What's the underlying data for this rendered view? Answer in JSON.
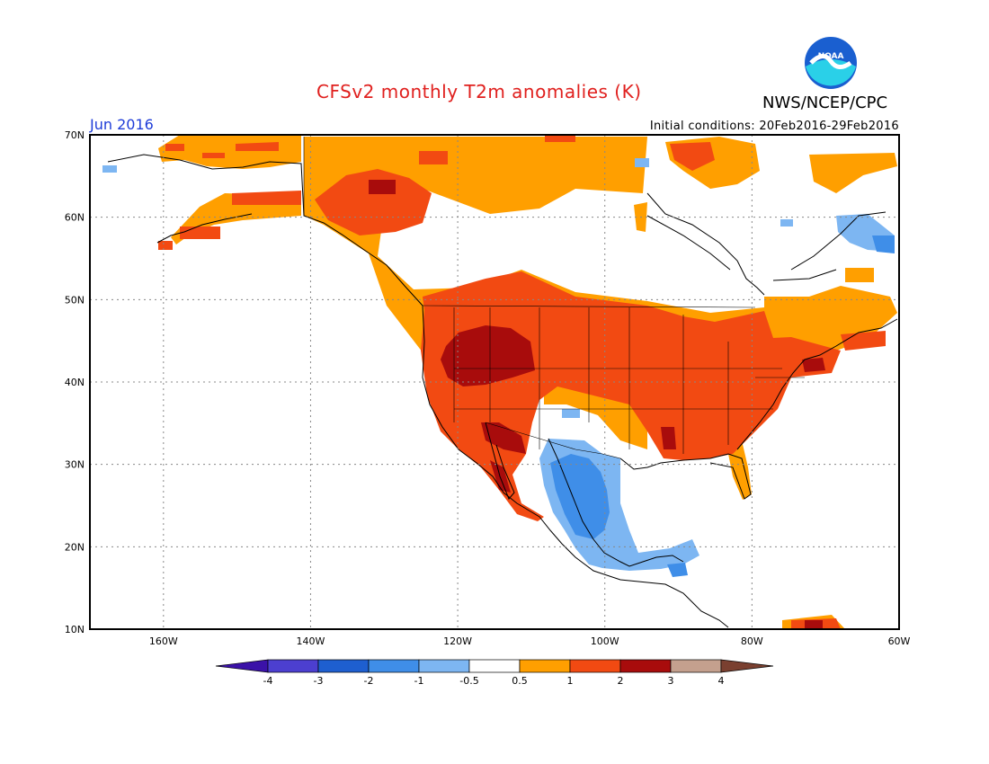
{
  "title": "CFSv2 monthly T2m anomalies (K)",
  "agency": "NWS/NCEP/CPC",
  "logo_text": "NOAA",
  "valid_month": "Jun 2016",
  "initial_conditions": "Initial conditions: 20Feb2016-29Feb2016",
  "map": {
    "lon_range": [
      -170,
      -60
    ],
    "lat_range": [
      10,
      70
    ],
    "lat_labels": [
      "70N",
      "60N",
      "50N",
      "40N",
      "30N",
      "20N",
      "10N"
    ],
    "lon_labels": [
      "160W",
      "140W",
      "120W",
      "100W",
      "80W",
      "60W"
    ]
  },
  "legend": {
    "tick_labels": [
      "-4",
      "-3",
      "-2",
      "-1",
      "-0.5",
      "0.5",
      "1",
      "2",
      "3",
      "4"
    ],
    "colors": [
      "#3b12a8",
      "#4c3fd0",
      "#1e5fd0",
      "#3f8ee8",
      "#7db6f2",
      "#ffffff",
      "#ff9f00",
      "#f24a12",
      "#a80c0c",
      "#c4a08e",
      "#7a4030"
    ]
  },
  "anomaly_regions": [
    {
      "level": "warm 0.5-1",
      "color": "#ff9f00",
      "area": "Canada, Alaska coast, Northeast"
    },
    {
      "level": "warm 1-2",
      "color": "#f24a12",
      "area": "Central and eastern United States"
    },
    {
      "level": "warm 2-3",
      "color": "#a80c0c",
      "area": "Great Basin, Baja California"
    },
    {
      "level": "cool -0.5 to -1",
      "color": "#7db6f2",
      "area": "Mexico, Labrador"
    },
    {
      "level": "cool -1 to -2",
      "color": "#3f8ee8",
      "area": "Central Mexico"
    }
  ]
}
